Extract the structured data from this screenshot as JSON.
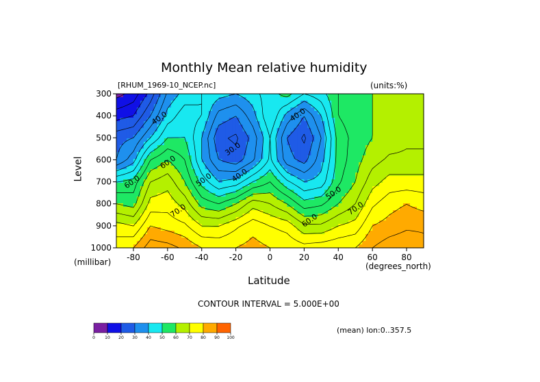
{
  "chart_data": {
    "type": "heatmap",
    "title": "Monthly Mean relative humidity",
    "dataset_label": "[RHUM_1969-10_NCEP.nc]",
    "units_label": "(units:%)",
    "ylabel": "Level",
    "yunits": "(millibar)",
    "xlabel": "Latitude",
    "xunits": "(degrees_north)",
    "contour_interval_text": "CONTOUR INTERVAL = 5.000E+00",
    "footer_text": "(mean) lon:0..357.5",
    "xlim": [
      -90,
      90
    ],
    "ylim": [
      1000,
      300
    ],
    "y_reversed": true,
    "x_ticks": [
      -80,
      -60,
      -40,
      -20,
      0,
      20,
      40,
      60,
      80
    ],
    "x_tick_labels": [
      "-80",
      "-60",
      "-40",
      "-20",
      "0",
      "20",
      "40",
      "60",
      "80"
    ],
    "y_ticks": [
      300,
      400,
      500,
      600,
      700,
      800,
      900,
      1000
    ],
    "y_tick_labels": [
      "300",
      "400",
      "500",
      "600",
      "700",
      "800",
      "900",
      "1000"
    ],
    "contour_labels": [
      {
        "text": "40.0",
        "lat": -64,
        "lev": 420
      },
      {
        "text": "40.0",
        "lat": 17,
        "lev": 405
      },
      {
        "text": "30.0",
        "lat": -21,
        "lev": 560
      },
      {
        "text": "40.0",
        "lat": -17,
        "lev": 680
      },
      {
        "text": "50.0",
        "lat": -38,
        "lev": 700
      },
      {
        "text": "50.0",
        "lat": 38,
        "lev": 760
      },
      {
        "text": "60.0",
        "lat": -59,
        "lev": 620
      },
      {
        "text": "60.0",
        "lat": 24,
        "lev": 885
      },
      {
        "text": "60.0",
        "lat": -80,
        "lev": 710
      },
      {
        "text": "70.0",
        "lat": -53,
        "lev": 840
      },
      {
        "text": "70.0",
        "lat": 51,
        "lev": 830
      }
    ],
    "colorbar": {
      "ticks": [
        "0",
        "10",
        "20",
        "30",
        "40",
        "50",
        "60",
        "70",
        "80",
        "90",
        "100"
      ],
      "colors": [
        "#7a1fa2",
        "#1010e6",
        "#1f5be6",
        "#1e90ee",
        "#18e8f0",
        "#1ee864",
        "#b4f000",
        "#ffff00",
        "#ffaa00",
        "#ff6400",
        "#ff0000"
      ]
    },
    "lat_grid": [
      -90,
      -80,
      -70,
      -60,
      -50,
      -40,
      -30,
      -20,
      -10,
      0,
      10,
      20,
      30,
      40,
      50,
      60,
      70,
      80,
      90
    ],
    "lev_grid": [
      300,
      400,
      500,
      600,
      700,
      800,
      900,
      1000
    ],
    "values": [
      [
        8,
        12,
        22,
        36,
        42,
        45,
        42,
        40,
        43,
        48,
        52,
        45,
        48,
        55,
        58,
        60,
        62,
        62,
        62
      ],
      [
        18,
        20,
        30,
        42,
        48,
        45,
        33,
        30,
        38,
        50,
        38,
        30,
        40,
        55,
        58,
        60,
        62,
        63,
        63
      ],
      [
        28,
        30,
        40,
        50,
        50,
        40,
        26,
        24,
        32,
        45,
        30,
        24,
        35,
        52,
        57,
        60,
        62,
        64,
        64
      ],
      [
        30,
        38,
        55,
        60,
        55,
        40,
        30,
        27,
        34,
        46,
        32,
        28,
        38,
        52,
        58,
        63,
        66,
        66,
        66
      ],
      [
        50,
        52,
        65,
        68,
        60,
        48,
        40,
        42,
        50,
        55,
        46,
        40,
        42,
        54,
        60,
        68,
        72,
        72,
        72
      ],
      [
        60,
        58,
        72,
        73,
        68,
        58,
        55,
        60,
        68,
        65,
        60,
        52,
        54,
        60,
        65,
        74,
        78,
        80,
        78
      ],
      [
        72,
        70,
        80,
        78,
        76,
        70,
        70,
        74,
        78,
        75,
        73,
        66,
        66,
        70,
        72,
        80,
        82,
        84,
        84
      ],
      [
        78,
        80,
        88,
        87,
        84,
        80,
        79,
        80,
        82,
        80,
        79,
        77,
        78,
        79,
        80,
        85,
        88,
        89,
        87
      ]
    ]
  }
}
